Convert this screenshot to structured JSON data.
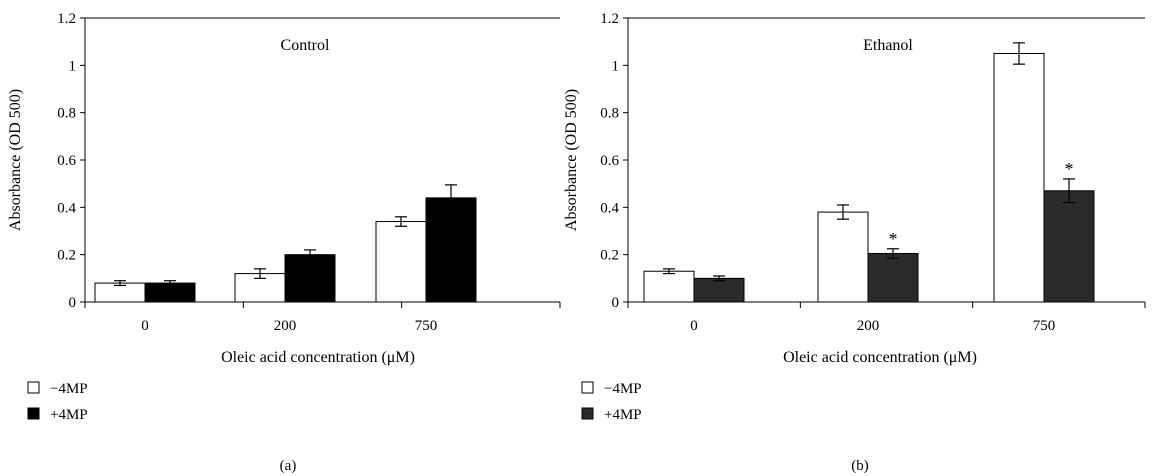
{
  "chart_data": [
    {
      "type": "bar",
      "panel_label": "(a)",
      "inset_title": "Control",
      "xlabel": "Oleic acid concentration (μM)",
      "ylabel": "Absorbance (OD 500)",
      "ylim": [
        0,
        1.2
      ],
      "yticks": [
        "0",
        "0.2",
        "0.4",
        "0.6",
        "0.8",
        "1",
        "1.2"
      ],
      "categories": [
        "0",
        "200",
        "750"
      ],
      "series": [
        {
          "name": "−4MP",
          "color": "#ffffff",
          "values": [
            0.08,
            0.12,
            0.34
          ],
          "errors": [
            0.01,
            0.02,
            0.02
          ],
          "stars": [
            false,
            false,
            false
          ]
        },
        {
          "name": "+4MP",
          "color": "#000000",
          "values": [
            0.08,
            0.2,
            0.44
          ],
          "errors": [
            0.01,
            0.02,
            0.055
          ],
          "stars": [
            false,
            false,
            false
          ]
        }
      ]
    },
    {
      "type": "bar",
      "panel_label": "(b)",
      "inset_title": "Ethanol",
      "xlabel": "Oleic acid concentration (μM)",
      "ylabel": "Absorbance (OD 500)",
      "ylim": [
        0,
        1.2
      ],
      "yticks": [
        "0",
        "0.2",
        "0.4",
        "0.6",
        "0.8",
        "1",
        "1.2"
      ],
      "categories": [
        "0",
        "200",
        "750"
      ],
      "series": [
        {
          "name": "−4MP",
          "color": "#ffffff",
          "values": [
            0.13,
            0.38,
            1.05
          ],
          "errors": [
            0.01,
            0.03,
            0.045
          ],
          "stars": [
            false,
            false,
            false
          ]
        },
        {
          "name": "+4MP",
          "color": "#2b2b2b",
          "values": [
            0.1,
            0.205,
            0.47
          ],
          "errors": [
            0.01,
            0.02,
            0.05
          ],
          "stars": [
            false,
            true,
            true
          ]
        }
      ]
    }
  ],
  "star_symbol": "*"
}
